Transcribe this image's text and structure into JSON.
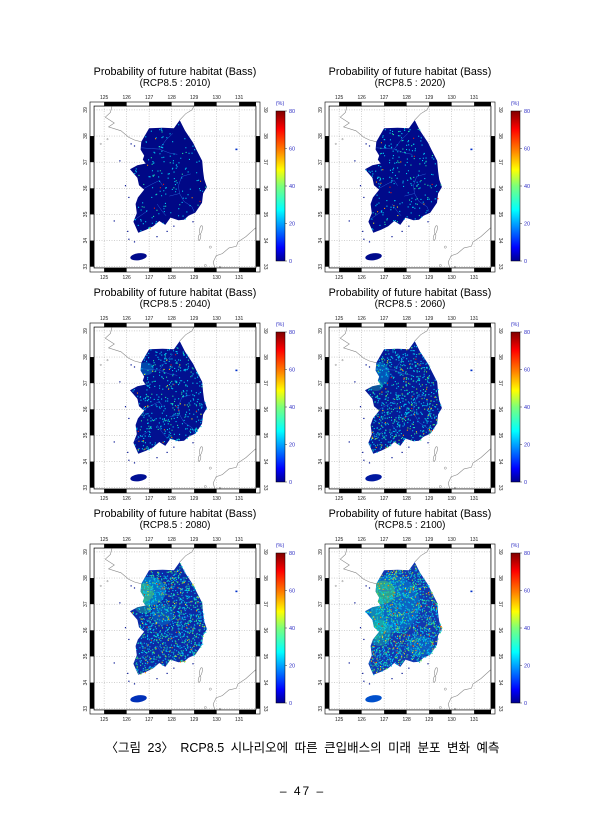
{
  "page": {
    "caption": "〈그림 23〉 RCP8.5 시나리오에 따른 큰입배스의 미래 분포 변화 예측",
    "page_number": "– 47 –"
  },
  "figure": {
    "title": "Probability of future habitat (Bass)",
    "panels": [
      {
        "year": "2010",
        "subtitle": "(RCP8.5 : 2010)",
        "seed": 11,
        "base": "#000886",
        "jeju": "#000a8c",
        "speckles": {
          "cyan": 130,
          "teal": 25,
          "green": 0,
          "yellow": 0,
          "orange": 5,
          "red": 4
        },
        "blobs": []
      },
      {
        "year": "2020",
        "subtitle": "(RCP8.5 : 2020)",
        "seed": 22,
        "base": "#000a8a",
        "jeju": "#000a8c",
        "speckles": {
          "cyan": 180,
          "teal": 45,
          "green": 0,
          "yellow": 3,
          "orange": 9,
          "red": 6
        },
        "blobs": []
      },
      {
        "year": "2040",
        "subtitle": "(RCP8.5 : 2040)",
        "seed": 33,
        "base": "#021090",
        "jeju": "#000f94",
        "speckles": {
          "cyan": 330,
          "teal": 80,
          "green": 0,
          "yellow": 10,
          "orange": 12,
          "red": 7
        },
        "blobs": [
          [
            126.85,
            37.55,
            0.35,
            0.25,
            "#00c8f0",
            0.3
          ]
        ]
      },
      {
        "year": "2060",
        "subtitle": "(RCP8.5 : 2060)",
        "seed": 44,
        "base": "#061a98",
        "jeju": "#0018a0",
        "speckles": {
          "cyan": 480,
          "teal": 160,
          "green": 40,
          "yellow": 18,
          "orange": 18,
          "red": 10
        },
        "blobs": [
          [
            126.8,
            37.35,
            0.45,
            0.45,
            "#00c8f0",
            0.35
          ],
          [
            126.65,
            36.9,
            0.3,
            0.2,
            "#20dca0",
            0.3
          ]
        ]
      },
      {
        "year": "2080",
        "subtitle": "(RCP8.5 : 2080)",
        "seed": 55,
        "base": "#0c2aa6",
        "jeju": "#0030b8",
        "speckles": {
          "cyan": 650,
          "teal": 280,
          "green": 90,
          "yellow": 40,
          "orange": 25,
          "red": 14
        },
        "blobs": [
          [
            127.0,
            37.5,
            0.75,
            0.55,
            "#00c8f0",
            0.45
          ],
          [
            126.8,
            37.45,
            0.4,
            0.35,
            "#60e060",
            0.45
          ],
          [
            126.7,
            36.95,
            0.35,
            0.3,
            "#20dca0",
            0.35
          ],
          [
            127.6,
            36.6,
            0.5,
            0.4,
            "#00c8f0",
            0.25
          ]
        ]
      },
      {
        "year": "2100",
        "subtitle": "(RCP8.5 : 2100)",
        "seed": 66,
        "base": "#1238b0",
        "jeju": "#0050cc",
        "speckles": {
          "cyan": 800,
          "teal": 360,
          "green": 140,
          "yellow": 60,
          "orange": 45,
          "red": 30
        },
        "blobs": [
          [
            127.3,
            37.0,
            1.3,
            1.1,
            "#00b8e8",
            0.35
          ],
          [
            126.95,
            37.45,
            0.55,
            0.45,
            "#50dc60",
            0.5
          ],
          [
            126.8,
            35.9,
            0.5,
            0.5,
            "#20dca0",
            0.35
          ],
          [
            128.6,
            35.4,
            0.6,
            0.4,
            "#00c8f0",
            0.25
          ],
          [
            126.7,
            36.5,
            0.3,
            0.9,
            "#20dca0",
            0.3
          ]
        ]
      }
    ],
    "axes": {
      "lon_ticks": [
        "125",
        "126",
        "127",
        "128",
        "129",
        "130",
        "131"
      ],
      "lat_ticks": [
        "39",
        "38",
        "37",
        "36",
        "35",
        "34",
        "33"
      ]
    },
    "colorbar": {
      "unit": "(%)",
      "tick_labels": [
        "80",
        "60",
        "40",
        "20",
        "0"
      ],
      "tick_values": [
        80,
        60,
        40,
        20,
        0
      ],
      "min": 0,
      "max": 80,
      "label_color": "#2f2fc4",
      "gradient": [
        [
          "0",
          "#00008f"
        ],
        [
          "0.09",
          "#0000ff"
        ],
        [
          "0.34",
          "#00ffff"
        ],
        [
          "0.5",
          "#7cff7a"
        ],
        [
          "0.61",
          "#ffff00"
        ],
        [
          "0.74",
          "#ff7e00"
        ],
        [
          "0.88",
          "#ff0000"
        ],
        [
          "1",
          "#800000"
        ]
      ]
    },
    "palette": {
      "cyan": "#00c8f0",
      "teal": "#20dca0",
      "green": "#74e23c",
      "yellow": "#e8e020",
      "orange": "#ff8c00",
      "red": "#e62010"
    }
  }
}
